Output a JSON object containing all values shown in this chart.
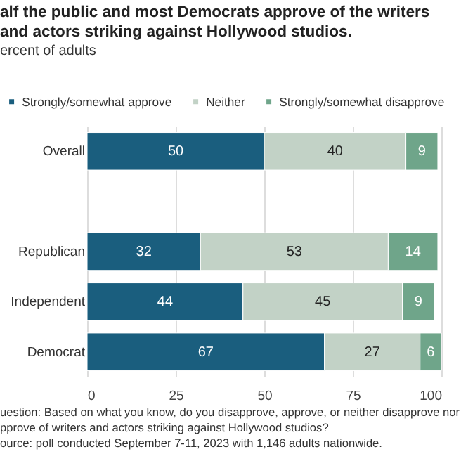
{
  "chart_data": {
    "type": "bar",
    "orientation": "horizontal",
    "stacked": true,
    "title": "alf the public and most Democrats approve of the writers and actors striking against Hollywood studios.",
    "subtitle": "ercent of adults",
    "categories": [
      "Overall",
      null,
      "Republican",
      "Independent",
      "Democrat"
    ],
    "series": [
      {
        "name": "Strongly/somewhat approve",
        "color": "#1a5e7e",
        "values": [
          50,
          null,
          32,
          44,
          67
        ]
      },
      {
        "name": "Neither",
        "color": "#c2d2c6",
        "values": [
          40,
          null,
          53,
          45,
          27
        ]
      },
      {
        "name": "Strongly/somewhat disapprove",
        "color": "#6fa58a",
        "values": [
          9,
          null,
          14,
          9,
          6
        ]
      }
    ],
    "xlim": [
      0,
      100
    ],
    "xticks": [
      0,
      25,
      50,
      75,
      100
    ],
    "grid": "x",
    "legend": "top",
    "data_labels": true,
    "annotations": [
      "uestion: Based on what you know, do you disapprove, approve, or neither disapprove nor pprove of writers and actors striking against Hollywood studios?",
      "ource: poll conducted September 7-11, 2023 with 1,146 adults nationwide."
    ]
  }
}
